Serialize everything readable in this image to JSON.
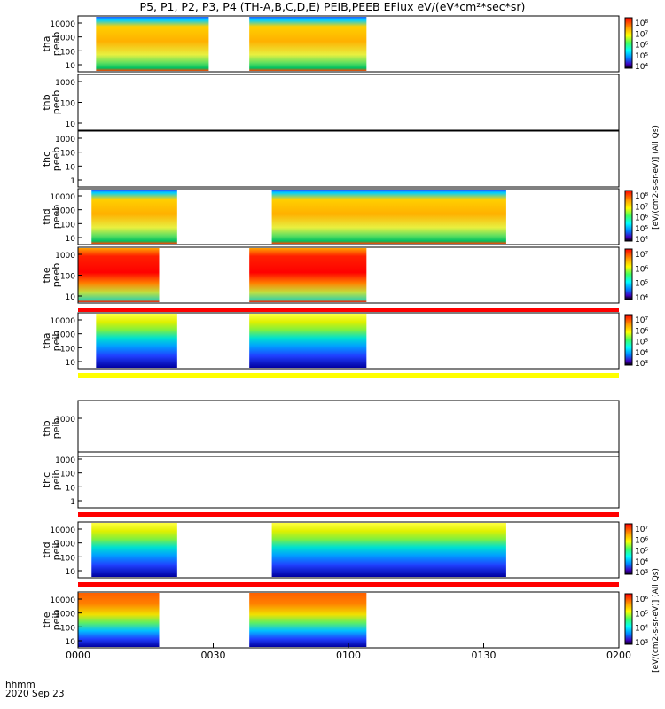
{
  "title": "P5, P1, P2, P3, P4 (TH-A,B,C,D,E) PEIB,PEEB EFlux eV/(eV*cm²*sec*sr)",
  "footer": {
    "time_label": "hhmm",
    "date_label": "2020 Sep 23"
  },
  "chart_data": {
    "type": "heatmap",
    "x_ticks": [
      "0000",
      "0030",
      "0100",
      "0130",
      "0200"
    ],
    "x_range_minutes": [
      0,
      120
    ],
    "colorbar_unit": "[eV/(cm2-s-sr-eV)]",
    "colorbar_unit_alt": "(All Qs)",
    "panels": [
      {
        "probe": "tha",
        "species": "peeb",
        "ylabel": [
          "tha",
          "peeb"
        ],
        "yticks": [
          "10000",
          "1000",
          "100",
          "10"
        ],
        "segments": [
          [
            4,
            29
          ],
          [
            38,
            64
          ]
        ],
        "cbar": [
          "10⁸",
          "10⁷",
          "10⁶",
          "10⁵",
          "10⁴"
        ],
        "scheme": "electron"
      },
      {
        "probe": "thb",
        "species": "peeb",
        "ylabel": [
          "thb",
          "peeb"
        ],
        "yticks": [
          "1000",
          "100",
          "10"
        ],
        "segments": [],
        "cbar": [],
        "scheme": "none"
      },
      {
        "probe": "thc",
        "species": "peeb",
        "ylabel": [
          "thc",
          "peeb"
        ],
        "yticks": [
          "1000",
          "100",
          "10",
          "1"
        ],
        "segments": [],
        "cbar": [],
        "scheme": "none"
      },
      {
        "probe": "thd",
        "species": "peeb",
        "ylabel": [
          "thd",
          "peeb"
        ],
        "yticks": [
          "10000",
          "1000",
          "100",
          "10"
        ],
        "segments": [
          [
            3,
            22
          ],
          [
            43,
            95
          ]
        ],
        "cbar": [
          "10⁸",
          "10⁷",
          "10⁶",
          "10⁵",
          "10⁴"
        ],
        "scheme": "electron"
      },
      {
        "probe": "the",
        "species": "peeb",
        "ylabel": [
          "the",
          "peeb"
        ],
        "yticks": [
          "1000",
          "100",
          "10"
        ],
        "segments": [
          [
            0,
            18
          ],
          [
            38,
            64
          ]
        ],
        "cbar": [
          "10⁷",
          "10⁶",
          "10⁵",
          "10⁴"
        ],
        "scheme": "electron_hot"
      },
      {
        "probe": "tha",
        "species": "peib",
        "ylabel": [
          "tha",
          "peib"
        ],
        "yticks": [
          "10000",
          "1000",
          "100",
          "10"
        ],
        "segments": [
          [
            4,
            22
          ],
          [
            38,
            64
          ]
        ],
        "cbar": [
          "10⁷",
          "10⁶",
          "10⁵",
          "10⁴",
          "10³"
        ],
        "scheme": "ion"
      },
      {
        "probe": "thb",
        "species": "peib",
        "ylabel": [
          "thb",
          "peib"
        ],
        "yticks": [
          "1000"
        ],
        "segments": [],
        "cbar": [],
        "scheme": "none"
      },
      {
        "probe": "thc",
        "species": "peib",
        "ylabel": [
          "thc",
          "peib"
        ],
        "yticks": [
          "1000",
          "100",
          "10",
          "1"
        ],
        "segments": [],
        "cbar": [],
        "scheme": "none"
      },
      {
        "probe": "thd",
        "species": "peib",
        "ylabel": [
          "thd",
          "peib"
        ],
        "yticks": [
          "10000",
          "1000",
          "100",
          "10"
        ],
        "segments": [
          [
            3,
            22
          ],
          [
            43,
            95
          ]
        ],
        "cbar": [
          "10⁷",
          "10⁶",
          "10⁵",
          "10⁴",
          "10³"
        ],
        "scheme": "ion"
      },
      {
        "probe": "the",
        "species": "peib",
        "ylabel": [
          "the",
          "peib"
        ],
        "yticks": [
          "10000",
          "1000",
          "100",
          "10"
        ],
        "segments": [
          [
            0,
            18
          ],
          [
            38,
            64
          ]
        ],
        "cbar": [
          "10⁶",
          "10⁵",
          "10⁴",
          "10³"
        ],
        "scheme": "ion_hot"
      }
    ],
    "separator_bars": [
      {
        "after_panel": 4,
        "color": "#ff0000"
      },
      {
        "after_panel": 5,
        "color": "#ffff00"
      },
      {
        "after_panel": 7,
        "color": "#ff0000"
      },
      {
        "after_panel": 8,
        "color": "#ff0000"
      }
    ]
  }
}
